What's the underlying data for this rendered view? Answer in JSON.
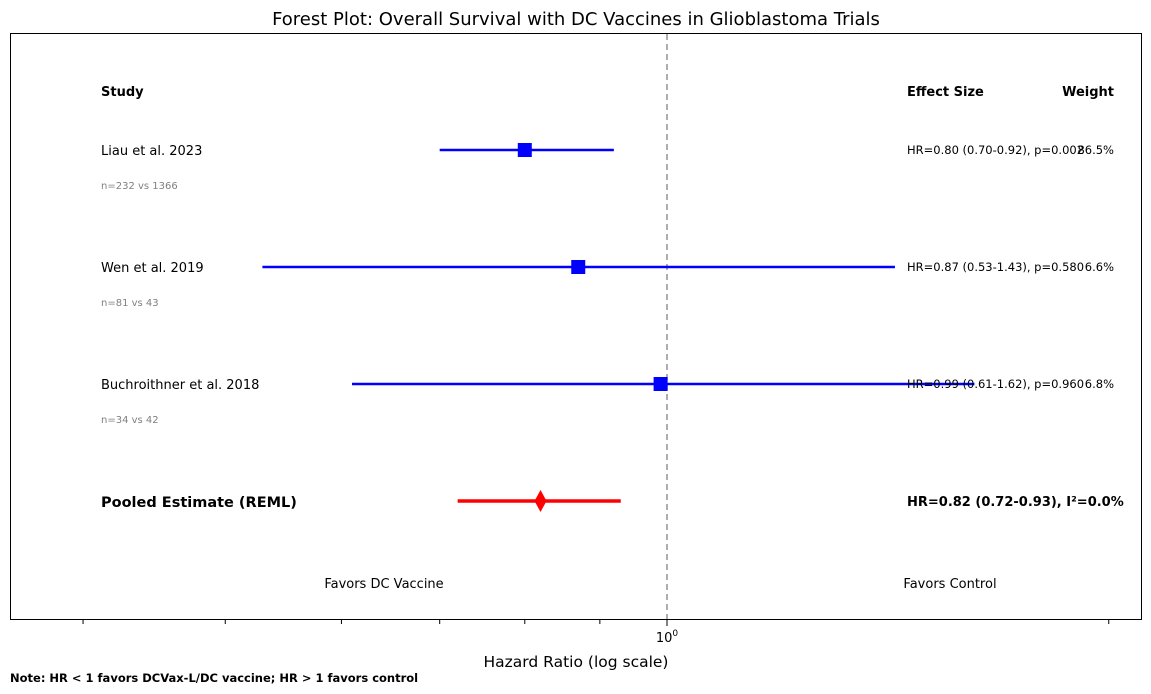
{
  "chart_data": {
    "type": "forest",
    "title": "Forest Plot: Overall Survival with DC Vaccines in Glioblastoma Trials",
    "xlabel": "Hazard Ratio (log scale)",
    "x_scale": "log",
    "x_tick_labels": [
      "10^0"
    ],
    "reference_line": 1,
    "headers": {
      "study": "Study",
      "effect": "Effect Size",
      "weight": "Weight"
    },
    "studies": [
      {
        "name": "Liau et al. 2023",
        "n": "n=232 vs 1366",
        "hr": 0.8,
        "lo": 0.7,
        "hi": 0.92,
        "effect_text": "HR=0.80 (0.70-0.92), p=0.002",
        "weight": "86.5%"
      },
      {
        "name": "Wen et al. 2019",
        "n": "n=81 vs 43",
        "hr": 0.87,
        "lo": 0.53,
        "hi": 1.43,
        "effect_text": "HR=0.87 (0.53-1.43), p=0.580",
        "weight": "6.6%"
      },
      {
        "name": "Buchroithner et al. 2018",
        "n": "n=34 vs 42",
        "hr": 0.99,
        "lo": 0.61,
        "hi": 1.62,
        "effect_text": "HR=0.99 (0.61-1.62), p=0.960",
        "weight": "6.8%"
      }
    ],
    "pooled": {
      "name": "Pooled Estimate (REML)",
      "hr": 0.82,
      "lo": 0.72,
      "hi": 0.93,
      "effect_text": "HR=0.82 (0.72-0.93), I²=0.0%"
    },
    "favors_left": "Favors DC Vaccine",
    "favors_right": "Favors Control",
    "note": "Note: HR < 1 favors DCVax-L/DC vaccine; HR > 1 favors control",
    "colors": {
      "study": "#0000ff",
      "pooled": "#ff0000",
      "reference": "#999999",
      "n_text": "#808080"
    }
  }
}
